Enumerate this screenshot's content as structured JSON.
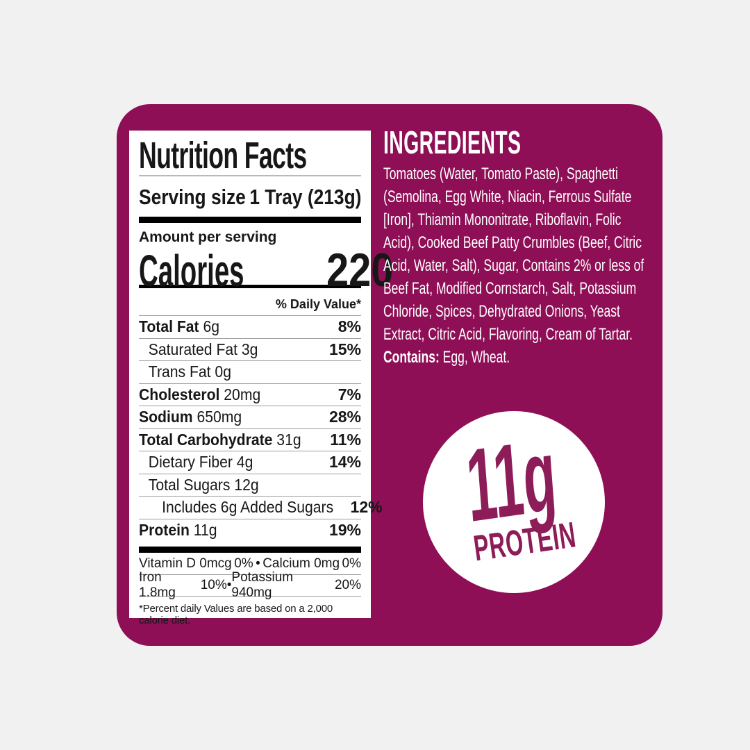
{
  "colors": {
    "page_bg": "#f1f1f2",
    "card_bg": "#8e0f56",
    "ink": "#171717",
    "hairline": "#9b9b9b",
    "badge_ink": "#8d1d58"
  },
  "nutrition": {
    "title": "Nutrition Facts",
    "serving_label": "Serving size",
    "serving_value": "1 Tray (213g)",
    "amount_label": "Amount per serving",
    "calories_label": "Calories",
    "calories_value": "220",
    "dv_header": "% Daily Value*",
    "rows": [
      {
        "label": "Total Fat",
        "amount": "6g",
        "dv": "8%",
        "bold": true,
        "indent": 0
      },
      {
        "label": "Saturated Fat",
        "amount": "3g",
        "dv": "15%",
        "bold": false,
        "indent": 1
      },
      {
        "label": "Trans Fat",
        "amount": "0g",
        "dv": "",
        "bold": false,
        "indent": 1
      },
      {
        "label": "Cholesterol",
        "amount": "20mg",
        "dv": "7%",
        "bold": true,
        "indent": 0
      },
      {
        "label": "Sodium",
        "amount": "650mg",
        "dv": "28%",
        "bold": true,
        "indent": 0
      },
      {
        "label": "Total Carbohydrate",
        "amount": "31g",
        "dv": "11%",
        "bold": true,
        "indent": 0
      },
      {
        "label": "Dietary Fiber",
        "amount": "4g",
        "dv": "14%",
        "bold": false,
        "indent": 1
      },
      {
        "label": "Total Sugars",
        "amount": "12g",
        "dv": "",
        "bold": false,
        "indent": 1
      },
      {
        "label": "Includes 6g Added Sugars",
        "amount": "",
        "dv": "12%",
        "bold": false,
        "indent": 2
      },
      {
        "label": "Protein",
        "amount": "11g",
        "dv": "19%",
        "bold": true,
        "indent": 0
      }
    ],
    "micros": [
      {
        "left": "Vitamin D 0mcg",
        "left_dv": "0%",
        "bullet": "•",
        "right": "Calcium 0mg",
        "right_dv": "0%"
      },
      {
        "left": "Iron 1.8mg",
        "left_dv": "10%",
        "bullet": "•",
        "right": "Potassium 940mg",
        "right_dv": "20%"
      }
    ],
    "footnote": "*Percent daily Values are based on a 2,000 calorie diet."
  },
  "ingredients": {
    "title": "INGREDIENTS",
    "body": "Tomatoes (Water, Tomato Paste), Spaghetti (Semolina, Egg White, Niacin, Ferrous Sulfate [Iron], Thiamin Mononitrate, Riboflavin, Folic Acid), Cooked Beef Patty Crumbles (Beef, Citric Acid, Water, Salt), Sugar, Contains 2% or less of Beef Fat, Modified Cornstarch, Salt, Potassium Chloride, Spices, Dehydrated Onions, Yeast Extract, Citric Acid, Flavoring, Cream of Tartar. ",
    "contains_label": "Contains:",
    "contains_value": " Egg, Wheat."
  },
  "badge": {
    "amount": "11g",
    "label": "PROTEIN"
  }
}
